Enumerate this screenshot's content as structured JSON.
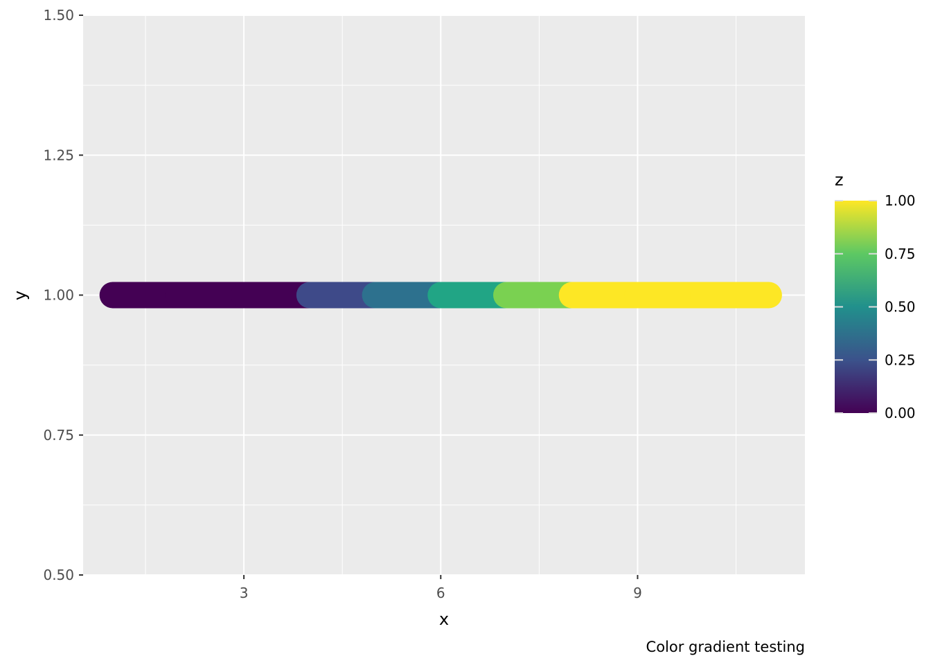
{
  "chart_data": {
    "type": "line",
    "title": "",
    "xlabel": "x",
    "ylabel": "y",
    "caption": "Color gradient testing",
    "xlim": [
      0.55,
      11.55
    ],
    "ylim": [
      0.5,
      1.5
    ],
    "x_ticks": [
      3,
      6,
      9
    ],
    "x_tick_labels": [
      "3",
      "6",
      "9"
    ],
    "x_minor_breaks": [
      1.5,
      4.5,
      7.5,
      10.5
    ],
    "y_ticks": [
      0.5,
      0.75,
      1.0,
      1.25,
      1.5
    ],
    "y_tick_labels": [
      "0.50",
      "0.75",
      "1.00",
      "1.25",
      "1.50"
    ],
    "y_minor_breaks": [
      0.625,
      0.875,
      1.125,
      1.375
    ],
    "grid": true,
    "series": [
      {
        "x": [
          1,
          2,
          3,
          4,
          5,
          6,
          7,
          8,
          9,
          10,
          11
        ],
        "y": [
          1,
          1,
          1,
          1,
          1,
          1,
          1,
          1,
          1,
          1,
          1
        ],
        "z": [
          0,
          0,
          0,
          0.1667,
          0.3333,
          0.5,
          0.8333,
          1,
          1,
          1,
          1
        ]
      }
    ],
    "legend": {
      "title": "z",
      "type": "colorbar",
      "position": "right",
      "scale": "viridis",
      "range": [
        0,
        1
      ],
      "breaks": [
        0,
        0.25,
        0.5,
        0.75,
        1
      ],
      "labels": [
        "0.00",
        "0.25",
        "0.50",
        "0.75",
        "1.00"
      ],
      "colors": [
        "#440154",
        "#3b528b",
        "#21908c",
        "#5dc863",
        "#fde725"
      ]
    },
    "segment_colors": [
      "#440154",
      "#440154",
      "#440154",
      "#3e4a89",
      "#2d718e",
      "#21a585",
      "#7ad151",
      "#fde725",
      "#fde725",
      "#fde725"
    ],
    "panel_background": "#ebebeb",
    "grid_color": "#ffffff"
  }
}
